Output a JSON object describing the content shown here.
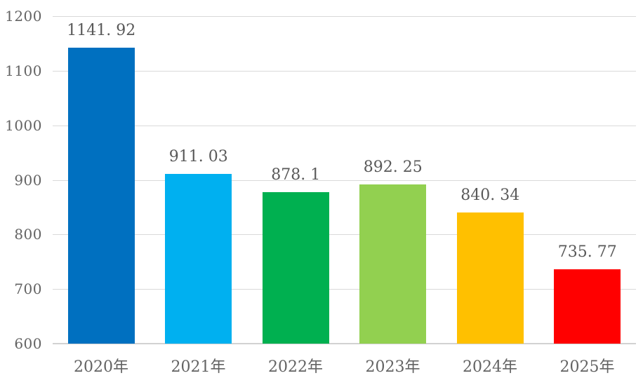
{
  "chart_data": {
    "type": "bar",
    "title": "",
    "xlabel": "",
    "ylabel": "",
    "categories": [
      "2020年",
      "2021年",
      "2022年",
      "2023年",
      "2024年",
      "2025年"
    ],
    "values": [
      1141.92,
      911.03,
      878.1,
      892.25,
      840.34,
      735.77
    ],
    "data_labels": [
      "1141. 92",
      "911. 03",
      "878. 1",
      "892. 25",
      "840. 34",
      "735. 77"
    ],
    "bar_colors": [
      "#0070C0",
      "#00B0F0",
      "#00B050",
      "#92D050",
      "#FFC000",
      "#FF0000"
    ],
    "ylim": [
      600,
      1200
    ],
    "y_ticks": [
      1200,
      1100,
      1000,
      900,
      800,
      700,
      600
    ],
    "grid": true,
    "legend": false,
    "data_labels_shown": true
  },
  "colors": {
    "background": "#FFFFFF",
    "gridline": "#D9D9D9",
    "axis_line": "#D2D2D2",
    "tick_label_text": "#636363",
    "data_label_text": "#595959",
    "category_label_text": "#636363"
  }
}
